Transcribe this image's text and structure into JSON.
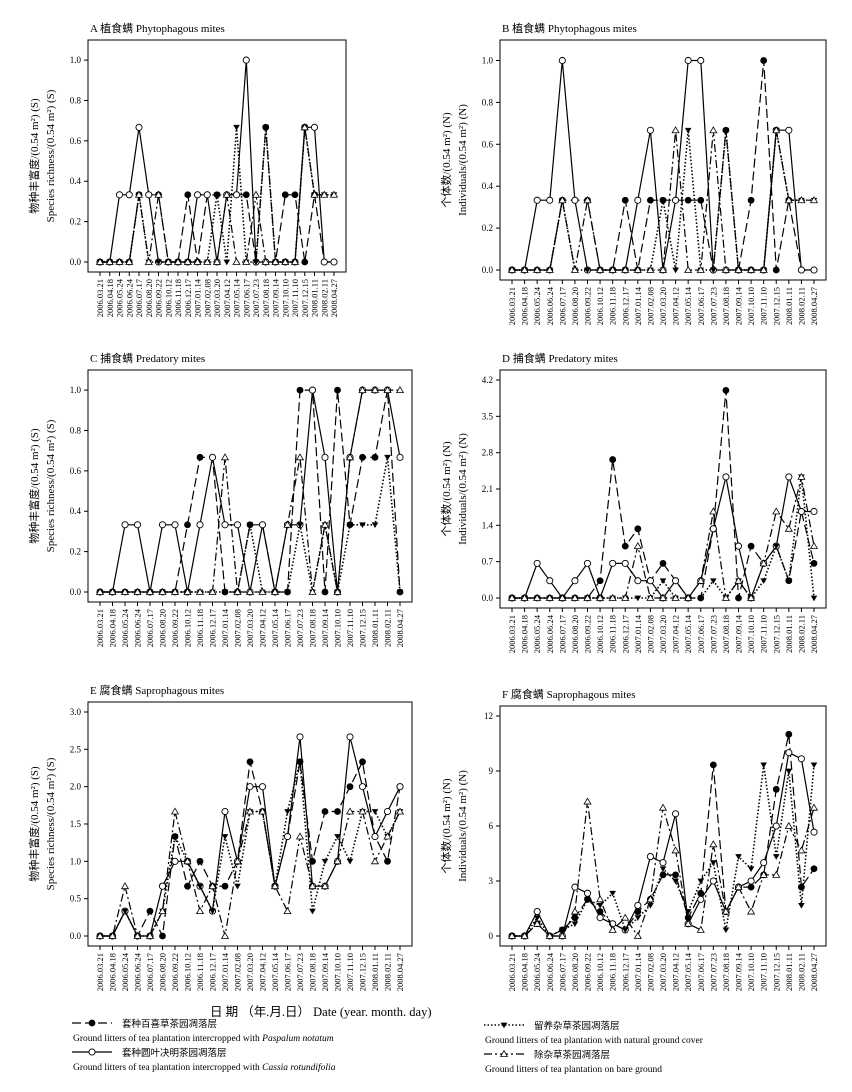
{
  "figure": {
    "xlabel": "日 期 （年.月.日） Date (year. month. day)"
  },
  "dates": [
    "2006.03.21",
    "2006.04.18",
    "2006.05.24",
    "2006.06.24",
    "2006.07.17",
    "2006.08.20",
    "2006.09.22",
    "2006.10.12",
    "2006.11.18",
    "2006.12.17",
    "2007.01.14",
    "2007.02.08",
    "2007.03.20",
    "2007.04.12",
    "2007.05.14",
    "2007.06.17",
    "2007.07.23",
    "2007.08.18",
    "2007.09.14",
    "2007.10.10",
    "2007.11.10",
    "2007.12.15",
    "2008.01.11",
    "2008.02.11",
    "2008.04.27"
  ],
  "series_styles": [
    {
      "key": "paspalum",
      "color": "#000000",
      "dash": "9,4",
      "marker": "filled-circle"
    },
    {
      "key": "cassia",
      "color": "#000000",
      "dash": "",
      "marker": "open-circle"
    },
    {
      "key": "natural",
      "color": "#000000",
      "dash": "1.5,2",
      "marker": "filled-triangle-down"
    },
    {
      "key": "bare",
      "color": "#000000",
      "dash": "8,3,2,3",
      "marker": "open-triangle-up"
    }
  ],
  "legend": {
    "entries": [
      {
        "key": "paspalum",
        "cn": "套种百喜草茶园凋落层",
        "en": "Ground litters of tea plantation intercropped with ",
        "en_italic": "Paspalum notatum"
      },
      {
        "key": "cassia",
        "cn": "套种圆叶决明茶园凋落层",
        "en": "Ground litters of tea plantation intercropped with ",
        "en_italic": "Cassia rotundifolia"
      },
      {
        "key": "natural",
        "cn": "留养杂草茶园凋落层",
        "en": "Ground litters of tea plantation with natural ground cover",
        "en_italic": ""
      },
      {
        "key": "bare",
        "cn": "除杂草茶园凋落层",
        "en": "Ground litters of tea plantation on bare ground",
        "en_italic": ""
      }
    ]
  },
  "chart_data": [
    {
      "panel": "A",
      "type": "line",
      "title": "A  植食螨  Phytophagous mites",
      "ylabel_cn": "物种丰富度/(0.54 m²) (S)",
      "ylabel_en": "Species richness/(0.54 m²) (S)",
      "ylim": [
        0,
        1.05
      ],
      "yticks": [
        0.0,
        0.2,
        0.4,
        0.6,
        0.8,
        1.0
      ],
      "tick_decimals": 1,
      "series": [
        {
          "key": "paspalum",
          "values": [
            0,
            0,
            0,
            0,
            0.333,
            0.333,
            0.333,
            0,
            0,
            0.333,
            0,
            0.333,
            0.333,
            0.333,
            0.333,
            0.333,
            0,
            0.667,
            0,
            0.333,
            0.333,
            0,
            0.333,
            0,
            0
          ]
        },
        {
          "key": "cassia",
          "values": [
            0,
            0,
            0.333,
            0.333,
            0.667,
            0.333,
            0,
            0,
            0,
            0,
            0.333,
            0.333,
            0,
            0.333,
            0.333,
            1.0,
            0,
            0,
            0,
            0,
            0,
            0.667,
            0.667,
            0,
            0
          ]
        },
        {
          "key": "natural",
          "values": [
            0,
            0,
            0,
            0,
            0.333,
            0,
            0,
            0,
            0,
            0,
            0,
            0,
            0.333,
            0,
            0.667,
            0,
            0,
            0.667,
            0,
            0,
            0,
            0.667,
            0.333,
            0.333,
            0.333
          ]
        },
        {
          "key": "bare",
          "values": [
            0,
            0,
            0,
            0,
            0.333,
            0,
            0.333,
            0,
            0,
            0,
            0,
            0,
            0,
            0.333,
            0,
            0,
            0.333,
            0,
            0,
            0,
            0,
            0.667,
            0.333,
            0.333,
            0.333
          ]
        }
      ]
    },
    {
      "panel": "B",
      "type": "line",
      "title": "B  植食螨  Phytophagous mites",
      "ylabel_cn": "个体数/(0.54 m²) (N)",
      "ylabel_en": "Individuals/(0.54 m²) (N)",
      "ylim": [
        0,
        1.05
      ],
      "yticks": [
        0.0,
        0.2,
        0.4,
        0.6,
        0.8,
        1.0
      ],
      "tick_decimals": 1,
      "series": [
        {
          "key": "paspalum",
          "values": [
            0,
            0,
            0,
            0,
            0.333,
            0.333,
            0.333,
            0,
            0,
            0.333,
            0,
            0.333,
            0.333,
            0.333,
            0.333,
            0.333,
            0,
            0.667,
            0,
            0.333,
            1.0,
            0,
            0.333,
            0,
            0
          ]
        },
        {
          "key": "cassia",
          "values": [
            0,
            0,
            0.333,
            0.333,
            1.0,
            0.333,
            0,
            0,
            0,
            0,
            0.333,
            0.667,
            0,
            0.333,
            1.0,
            1.0,
            0,
            0,
            0,
            0,
            0,
            0.667,
            0.667,
            0,
            0
          ]
        },
        {
          "key": "natural",
          "values": [
            0,
            0,
            0,
            0,
            0.333,
            0,
            0,
            0,
            0,
            0,
            0,
            0,
            0.333,
            0,
            0.667,
            0,
            0,
            0.667,
            0,
            0,
            0,
            0.667,
            0.333,
            0.333,
            0.333
          ]
        },
        {
          "key": "bare",
          "values": [
            0,
            0,
            0,
            0,
            0.333,
            0,
            0.333,
            0,
            0,
            0,
            0,
            0,
            0,
            0.667,
            0,
            0,
            0.667,
            0,
            0,
            0,
            0,
            0.667,
            0.333,
            0.333,
            0.333
          ]
        }
      ]
    },
    {
      "panel": "C",
      "type": "line",
      "title": "C  捕食螨  Predatory mites",
      "ylabel_cn": "物种丰富度/(0.54 m²) (S)",
      "ylabel_en": "Species richness/(0.54 m²) (S)",
      "ylim": [
        0,
        1.05
      ],
      "yticks": [
        0.0,
        0.2,
        0.4,
        0.6,
        0.8,
        1.0
      ],
      "tick_decimals": 1,
      "series": [
        {
          "key": "paspalum",
          "values": [
            0,
            0,
            0,
            0,
            0,
            0,
            0,
            0.333,
            0.667,
            0.667,
            0,
            0,
            0.333,
            0.333,
            0,
            0,
            1.0,
            1.0,
            0,
            1.0,
            0.333,
            0.667,
            0.667,
            1.0,
            0
          ]
        },
        {
          "key": "cassia",
          "values": [
            0,
            0,
            0.333,
            0.333,
            0,
            0.333,
            0.333,
            0,
            0.333,
            0.667,
            0.333,
            0.333,
            0,
            0.333,
            0,
            0.333,
            0.333,
            1.0,
            0.667,
            0,
            0.667,
            1.0,
            1.0,
            1.0,
            0.667
          ]
        },
        {
          "key": "natural",
          "values": [
            0,
            0,
            0,
            0,
            0,
            0,
            0,
            0,
            0,
            0,
            0,
            0,
            0.333,
            0,
            0,
            0,
            0.333,
            0,
            0.333,
            0,
            0.333,
            0.333,
            0.333,
            0.667,
            0
          ]
        },
        {
          "key": "bare",
          "values": [
            0,
            0,
            0,
            0,
            0,
            0,
            0,
            0,
            0,
            0,
            0.667,
            0,
            0,
            0,
            0,
            0.333,
            0.667,
            0,
            0.333,
            0,
            0.667,
            1.0,
            1.0,
            1.0,
            1.0
          ]
        }
      ]
    },
    {
      "panel": "D",
      "type": "line",
      "title": "D  捕食螨  Predatory mites",
      "ylabel_cn": "个体数/(0.54 m²) (N)",
      "ylabel_en": "Individuals/(0.54 m²) (N)",
      "ylim": [
        0,
        4.2
      ],
      "yticks": [
        0.0,
        0.7,
        1.4,
        2.1,
        2.8,
        3.5,
        4.2
      ],
      "tick_decimals": 1,
      "series": [
        {
          "key": "paspalum",
          "values": [
            0,
            0,
            0,
            0,
            0,
            0,
            0,
            0.333,
            2.667,
            1.0,
            1.333,
            0.333,
            0.667,
            0.333,
            0,
            0,
            1.333,
            4.0,
            0,
            1.0,
            0.667,
            1.0,
            0.333,
            1.667,
            0.667
          ]
        },
        {
          "key": "cassia",
          "values": [
            0,
            0,
            0.667,
            0.333,
            0,
            0.333,
            0.667,
            0,
            0.667,
            0.667,
            0.333,
            0.333,
            0,
            0.333,
            0,
            0.333,
            1.333,
            2.333,
            1.0,
            0,
            0.667,
            1.0,
            2.333,
            1.667,
            1.667
          ]
        },
        {
          "key": "natural",
          "values": [
            0,
            0,
            0,
            0,
            0,
            0,
            0,
            0,
            0,
            0,
            0,
            0,
            0.333,
            0,
            0,
            0,
            0.333,
            0,
            0.333,
            0,
            0.333,
            1.0,
            0.333,
            2.333,
            0
          ]
        },
        {
          "key": "bare",
          "values": [
            0,
            0,
            0,
            0,
            0,
            0,
            0,
            0,
            0,
            0,
            1.0,
            0,
            0,
            0,
            0,
            0.333,
            1.667,
            0,
            0.333,
            0,
            0.667,
            1.667,
            1.333,
            2.333,
            1.0
          ]
        }
      ]
    },
    {
      "panel": "E",
      "type": "line",
      "title": "E  腐食螨  Saprophagous mites",
      "ylabel_cn": "物种丰富度/(0.54 m²) (S)",
      "ylabel_en": "Species richness/(0.54 m²) (S)",
      "ylim": [
        0,
        3.0
      ],
      "yticks": [
        0.0,
        0.5,
        1.0,
        1.5,
        2.0,
        2.5,
        3.0
      ],
      "tick_decimals": 1,
      "series": [
        {
          "key": "paspalum",
          "values": [
            0,
            0,
            0.333,
            0,
            0.333,
            0,
            1.333,
            0.667,
            1.0,
            0.667,
            0.667,
            1.0,
            2.333,
            1.667,
            0.667,
            1.333,
            2.333,
            1.0,
            1.667,
            1.667,
            2.0,
            2.333,
            1.333,
            1.0,
            2.0
          ]
        },
        {
          "key": "cassia",
          "values": [
            0,
            0,
            0.333,
            0,
            0,
            0.667,
            1.0,
            1.0,
            0.667,
            0.333,
            1.667,
            1.0,
            2.0,
            2.0,
            0.667,
            1.333,
            2.667,
            0.667,
            0.667,
            1.0,
            2.667,
            2.0,
            1.333,
            1.667,
            2.0
          ]
        },
        {
          "key": "natural",
          "values": [
            0,
            0,
            0.333,
            0,
            0,
            0.333,
            1.333,
            1.0,
            0.667,
            0.333,
            1.333,
            0.667,
            1.667,
            1.667,
            0.667,
            1.667,
            2.333,
            0.333,
            1.0,
            1.333,
            1.0,
            1.667,
            1.667,
            1.333,
            1.667
          ]
        },
        {
          "key": "bare",
          "values": [
            0,
            0,
            0.667,
            0,
            0,
            0.333,
            1.667,
            1.0,
            0.333,
            0.667,
            0,
            1.0,
            1.667,
            1.667,
            0.667,
            0.333,
            1.333,
            0.667,
            0.667,
            1.0,
            1.667,
            1.667,
            1.0,
            1.333,
            1.667
          ]
        }
      ]
    },
    {
      "panel": "F",
      "type": "line",
      "title": "F  腐食螨  Saprophagous mites",
      "ylabel_cn": "个体数/(0.54 m²) (N)",
      "ylabel_en": "Individuals/(0.54 m²) (N)",
      "ylim": [
        0,
        12
      ],
      "yticks": [
        0,
        3,
        6,
        9,
        12
      ],
      "tick_decimals": 0,
      "series": [
        {
          "key": "paspalum",
          "values": [
            0,
            0,
            0.667,
            0,
            0.333,
            1.0,
            2.0,
            1.333,
            0.667,
            0.333,
            1.333,
            2.0,
            3.333,
            3.333,
            1.0,
            2.333,
            9.333,
            1.333,
            2.667,
            2.667,
            3.333,
            8.0,
            11.0,
            2.667,
            3.667
          ]
        },
        {
          "key": "cassia",
          "values": [
            0,
            0,
            1.333,
            0,
            0,
            2.667,
            2.333,
            1.0,
            0.667,
            0.333,
            1.667,
            4.333,
            4.0,
            6.667,
            0.667,
            2.0,
            3.0,
            1.333,
            2.667,
            3.0,
            4.0,
            6.0,
            10.0,
            9.667,
            5.667
          ]
        },
        {
          "key": "natural",
          "values": [
            0,
            0,
            1.0,
            0,
            0.333,
            0.667,
            2.0,
            1.667,
            2.333,
            0.333,
            1.0,
            1.667,
            3.667,
            3.0,
            1.333,
            3.0,
            4.0,
            0.333,
            4.333,
            3.667,
            9.333,
            4.333,
            9.0,
            1.667,
            9.333
          ]
        },
        {
          "key": "bare",
          "values": [
            0,
            0,
            0.667,
            0,
            0,
            1.333,
            7.333,
            2.0,
            0.333,
            1.0,
            0,
            2.0,
            7.0,
            4.667,
            0.667,
            0.333,
            5.0,
            1.333,
            2.667,
            1.333,
            3.333,
            3.333,
            6.0,
            4.667,
            7.0
          ]
        }
      ]
    }
  ]
}
